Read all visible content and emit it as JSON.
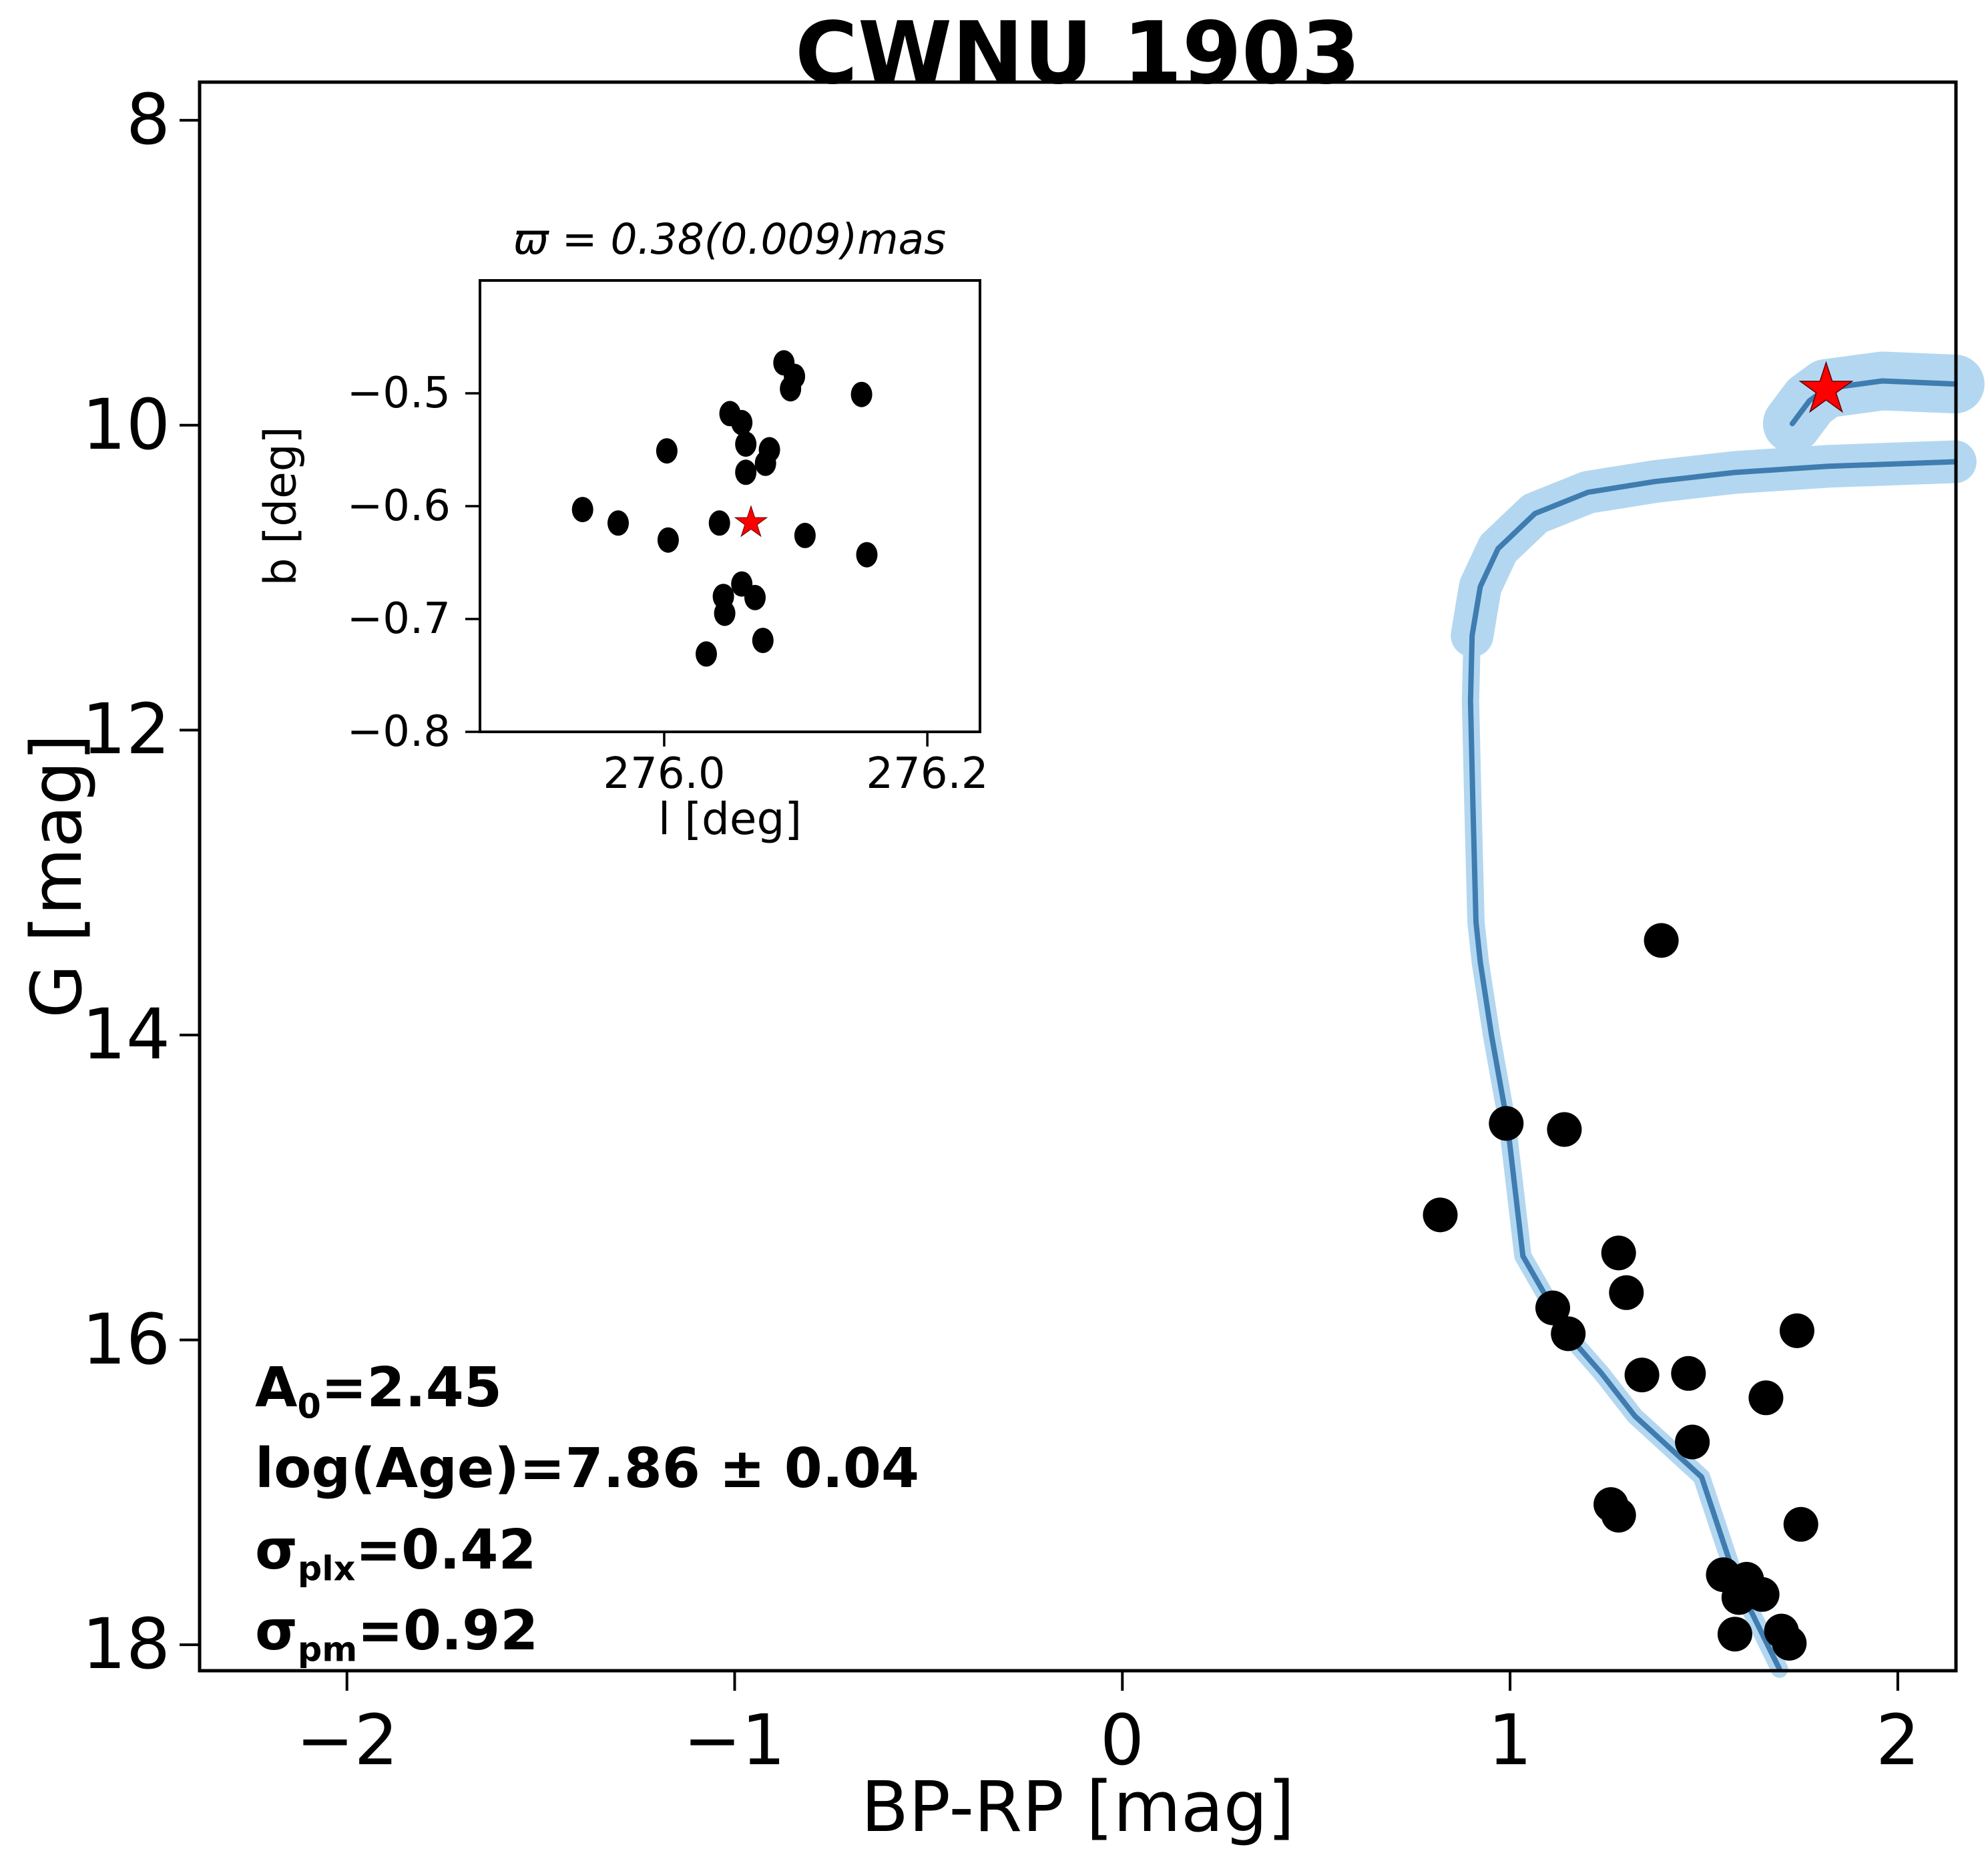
{
  "title": "CWNU 1903",
  "colors": {
    "isochrone_line": "#3f7cb0",
    "uncertainty_band": "#b3d7f0",
    "member_marker": "#000000",
    "reference_star": "#ff0000",
    "star_edge": "#5c0000",
    "frame": "#000000"
  },
  "annotations": [
    {
      "pre": "A",
      "sub": "0",
      "post": "=2.45"
    },
    {
      "pre": "log(Age)",
      "sub": "",
      "post": "=7.86 ± 0.04"
    },
    {
      "pre": "σ",
      "sub": "plx",
      "post": "=0.42"
    },
    {
      "pre": "σ",
      "sub": "pm",
      "post": "=0.92"
    }
  ],
  "chart_data": [
    {
      "type": "scatter",
      "title": "CWNU 1903",
      "xlabel": "BP-RP [mag]",
      "ylabel": "G [mag]",
      "xlim": [
        -2.38,
        2.15
      ],
      "ylim": [
        18.17,
        7.75
      ],
      "grid": false,
      "legend": "none",
      "xtick_vals": [
        -2,
        -1,
        0,
        1,
        2
      ],
      "xtick_labels": [
        "−2",
        "−1",
        "0",
        "1",
        "2"
      ],
      "ytick_vals": [
        8,
        10,
        12,
        14,
        16,
        18
      ],
      "ytick_labels": [
        "8",
        "10",
        "12",
        "14",
        "16",
        "18"
      ],
      "members": [
        [
          0.82,
          15.18
        ],
        [
          0.99,
          14.58
        ],
        [
          1.11,
          15.79
        ],
        [
          1.14,
          14.62
        ],
        [
          1.15,
          15.96
        ],
        [
          1.26,
          17.08
        ],
        [
          1.28,
          15.43
        ],
        [
          1.28,
          17.15
        ],
        [
          1.3,
          15.69
        ],
        [
          1.34,
          16.23
        ],
        [
          1.39,
          13.38
        ],
        [
          1.46,
          16.22
        ],
        [
          1.47,
          16.67
        ],
        [
          1.55,
          17.54
        ],
        [
          1.58,
          17.93
        ],
        [
          1.59,
          17.69
        ],
        [
          1.61,
          17.57
        ],
        [
          1.65,
          17.67
        ],
        [
          1.66,
          16.38
        ],
        [
          1.7,
          17.91
        ],
        [
          1.72,
          17.99
        ],
        [
          1.74,
          15.94
        ],
        [
          1.75,
          17.21
        ]
      ],
      "isochrone": [
        [
          1.695,
          18.16
        ],
        [
          1.583,
          17.58
        ],
        [
          1.494,
          16.9
        ],
        [
          1.322,
          16.5
        ],
        [
          1.236,
          16.22
        ],
        [
          1.15,
          15.97
        ],
        [
          1.033,
          15.45
        ],
        [
          0.993,
          14.58
        ],
        [
          0.952,
          14.0
        ],
        [
          0.923,
          13.52
        ],
        [
          0.912,
          13.26
        ],
        [
          0.904,
          12.47
        ],
        [
          0.898,
          11.81
        ],
        [
          0.902,
          11.38
        ],
        [
          0.923,
          11.06
        ],
        [
          0.969,
          10.81
        ],
        [
          1.064,
          10.58
        ],
        [
          1.201,
          10.44
        ],
        [
          1.373,
          10.37
        ],
        [
          1.58,
          10.31
        ],
        [
          1.821,
          10.27
        ],
        [
          2.148,
          10.24
        ]
      ],
      "giant_branch": [
        [
          1.728,
          9.99
        ],
        [
          1.772,
          9.84
        ],
        [
          1.815,
          9.76
        ],
        [
          1.96,
          9.71
        ],
        [
          2.148,
          9.73
        ]
      ],
      "reference_star": [
        1.815,
        9.76
      ]
    },
    {
      "type": "scatter",
      "title": "ϖ = 0.38(0.009)mas",
      "xlabel": "l [deg]",
      "ylabel": "b [deg]",
      "xlim": [
        275.86,
        276.24
      ],
      "ylim": [
        -0.8,
        -0.4
      ],
      "grid": false,
      "legend": "none",
      "xtick_vals": [
        276.0,
        276.2
      ],
      "xtick_labels": [
        "276.0",
        "276.2"
      ],
      "ytick_vals": [
        -0.5,
        -0.6,
        -0.7,
        -0.8
      ],
      "ytick_labels": [
        "−0.5",
        "−0.6",
        "−0.7",
        "−0.8"
      ],
      "members": [
        [
          276.091,
          -0.473
        ],
        [
          276.099,
          -0.485
        ],
        [
          276.096,
          -0.496
        ],
        [
          276.15,
          -0.501
        ],
        [
          276.05,
          -0.518
        ],
        [
          276.059,
          -0.526
        ],
        [
          276.062,
          -0.545
        ],
        [
          276.08,
          -0.55
        ],
        [
          276.002,
          -0.551
        ],
        [
          276.077,
          -0.562
        ],
        [
          276.062,
          -0.57
        ],
        [
          275.938,
          -0.603
        ],
        [
          275.965,
          -0.615
        ],
        [
          276.042,
          -0.615
        ],
        [
          276.003,
          -0.63
        ],
        [
          276.107,
          -0.626
        ],
        [
          276.154,
          -0.643
        ],
        [
          276.059,
          -0.669
        ],
        [
          276.045,
          -0.68
        ],
        [
          276.069,
          -0.681
        ],
        [
          276.046,
          -0.695
        ],
        [
          276.075,
          -0.719
        ],
        [
          276.032,
          -0.731
        ]
      ],
      "center_star": [
        276.066,
        -0.614
      ]
    }
  ]
}
